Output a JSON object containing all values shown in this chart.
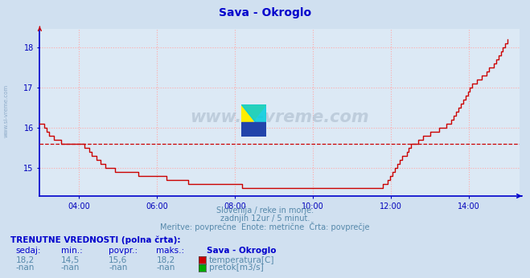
{
  "title": "Sava - Okroglo",
  "title_color": "#0000cc",
  "bg_color": "#d0e0f0",
  "plot_bg_color": "#dce9f5",
  "line_color": "#cc0000",
  "avg_line_color": "#cc0000",
  "avg_value": 15.6,
  "grid_color": "#ffaaaa",
  "axis_color": "#0000cc",
  "tick_color": "#0000bb",
  "text_color": "#5588aa",
  "ylabel_ticks": [
    15,
    16,
    17,
    18
  ],
  "ylim": [
    14.3,
    18.45
  ],
  "xlim_hours": [
    3.0,
    15.3
  ],
  "xtick_hours": [
    4,
    6,
    8,
    10,
    12,
    14
  ],
  "xtick_labels": [
    "04:00",
    "06:00",
    "08:00",
    "10:00",
    "12:00",
    "14:00"
  ],
  "subtitle1": "Slovenija / reke in morje.",
  "subtitle2": "zadnjih 12ur / 5 minut.",
  "subtitle3": "Meritve: povprečne  Enote: metrične  Črta: povprečje",
  "footer_title": "TRENUTNE VREDNOSTI (polna črta):",
  "col_headers": [
    "sedaj:",
    "min.:",
    "povpr.:",
    "maks.:",
    "Sava - Okroglo"
  ],
  "row1_vals": [
    "18,2",
    "14,5",
    "15,6",
    "18,2"
  ],
  "row1_label": "temperatura[C]",
  "row1_color": "#cc0000",
  "row2_vals": [
    "-nan",
    "-nan",
    "-nan",
    "-nan"
  ],
  "row2_label": "pretok[m3/s]",
  "row2_color": "#00aa00",
  "side_watermark": "www.si-vreme.com",
  "temperature_data": [
    16.1,
    16.1,
    16.0,
    15.9,
    15.8,
    15.8,
    15.7,
    15.7,
    15.7,
    15.6,
    15.6,
    15.6,
    15.6,
    15.6,
    15.6,
    15.6,
    15.6,
    15.6,
    15.6,
    15.5,
    15.5,
    15.4,
    15.3,
    15.3,
    15.2,
    15.2,
    15.1,
    15.1,
    15.0,
    15.0,
    15.0,
    15.0,
    14.9,
    14.9,
    14.9,
    14.9,
    14.9,
    14.9,
    14.9,
    14.9,
    14.9,
    14.9,
    14.8,
    14.8,
    14.8,
    14.8,
    14.8,
    14.8,
    14.8,
    14.8,
    14.8,
    14.8,
    14.8,
    14.8,
    14.7,
    14.7,
    14.7,
    14.7,
    14.7,
    14.7,
    14.7,
    14.7,
    14.7,
    14.6,
    14.6,
    14.6,
    14.6,
    14.6,
    14.6,
    14.6,
    14.6,
    14.6,
    14.6,
    14.6,
    14.6,
    14.6,
    14.6,
    14.6,
    14.6,
    14.6,
    14.6,
    14.6,
    14.6,
    14.6,
    14.6,
    14.6,
    14.5,
    14.5,
    14.5,
    14.5,
    14.5,
    14.5,
    14.5,
    14.5,
    14.5,
    14.5,
    14.5,
    14.5,
    14.5,
    14.5,
    14.5,
    14.5,
    14.5,
    14.5,
    14.5,
    14.5,
    14.5,
    14.5,
    14.5,
    14.5,
    14.5,
    14.5,
    14.5,
    14.5,
    14.5,
    14.5,
    14.5,
    14.5,
    14.5,
    14.5,
    14.5,
    14.5,
    14.5,
    14.5,
    14.5,
    14.5,
    14.5,
    14.5,
    14.5,
    14.5,
    14.5,
    14.5,
    14.5,
    14.5,
    14.5,
    14.5,
    14.5,
    14.5,
    14.5,
    14.5,
    14.5,
    14.5,
    14.5,
    14.5,
    14.5,
    14.5,
    14.6,
    14.6,
    14.7,
    14.8,
    14.9,
    15.0,
    15.1,
    15.2,
    15.3,
    15.3,
    15.4,
    15.5,
    15.6,
    15.6,
    15.6,
    15.7,
    15.7,
    15.8,
    15.8,
    15.8,
    15.9,
    15.9,
    15.9,
    15.9,
    16.0,
    16.0,
    16.0,
    16.1,
    16.1,
    16.2,
    16.3,
    16.4,
    16.5,
    16.6,
    16.7,
    16.8,
    16.9,
    17.0,
    17.1,
    17.1,
    17.2,
    17.2,
    17.3,
    17.3,
    17.4,
    17.5,
    17.5,
    17.6,
    17.7,
    17.8,
    17.9,
    18.0,
    18.1,
    18.2
  ]
}
